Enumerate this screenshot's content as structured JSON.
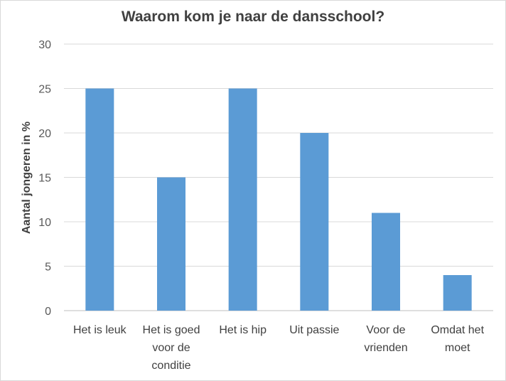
{
  "chart_data": {
    "type": "bar",
    "title": "Waarom kom je naar de dansschool?",
    "ylabel": "Aantal jongeren in %",
    "xlabel": "",
    "ylim": [
      0,
      30
    ],
    "yticks": [
      0,
      5,
      10,
      15,
      20,
      25,
      30
    ],
    "grid": true,
    "categories": [
      [
        "Het is leuk"
      ],
      [
        "Het is goed",
        "voor de",
        "conditie"
      ],
      [
        "Het is hip"
      ],
      [
        "Uit passie"
      ],
      [
        "Voor de",
        "vrienden"
      ],
      [
        "Omdat het",
        "moet"
      ]
    ],
    "values": [
      25,
      15,
      25,
      20,
      11,
      4
    ],
    "colors": {
      "bar": "#5b9bd5",
      "grid": "#d9d9d9",
      "axis": "#bfbfbf"
    }
  }
}
